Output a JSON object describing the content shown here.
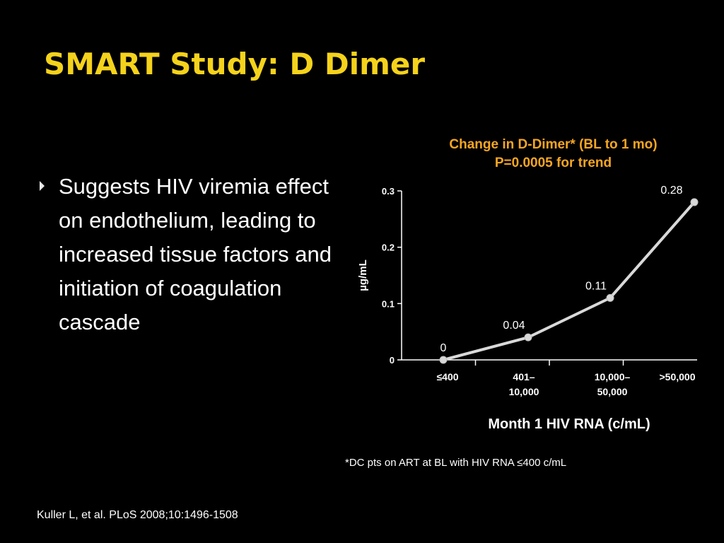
{
  "slide": {
    "title": "SMART Study: D Dimer",
    "bullet": "Suggests HIV viremia effect on endothelium, leading to increased tissue factors and initiation of coagulation cascade",
    "footnote": "*DC pts on ART at BL with HIV RNA ≤400 c/mL",
    "citation": "Kuller L, et al. PLoS  2008;10:1496-1508"
  },
  "chart_data": {
    "type": "line",
    "title": "Change in D-Dimer* (BL to 1 mo)",
    "subtitle": "P=0.0005 for trend",
    "categories": [
      "≤400",
      "401–\n10,000",
      "10,000–\n50,000",
      ">50,000"
    ],
    "values": [
      0,
      0.04,
      0.11,
      0.28
    ],
    "data_labels": [
      "0",
      "0.04",
      "0.11",
      "0.28"
    ],
    "xlabel": "Month 1 HIV RNA (c/mL)",
    "ylabel": "µg/mL",
    "ylim": [
      0,
      0.3
    ],
    "yticks": [
      0,
      0.1,
      0.2,
      0.3
    ],
    "ytick_labels": [
      "0",
      "0.1",
      "0.2",
      "0.3"
    ],
    "grid": false,
    "colors": {
      "title": "#f5a623",
      "line": "#d9d9d9",
      "axis": "#ffffff",
      "text": "#ffffff"
    }
  }
}
